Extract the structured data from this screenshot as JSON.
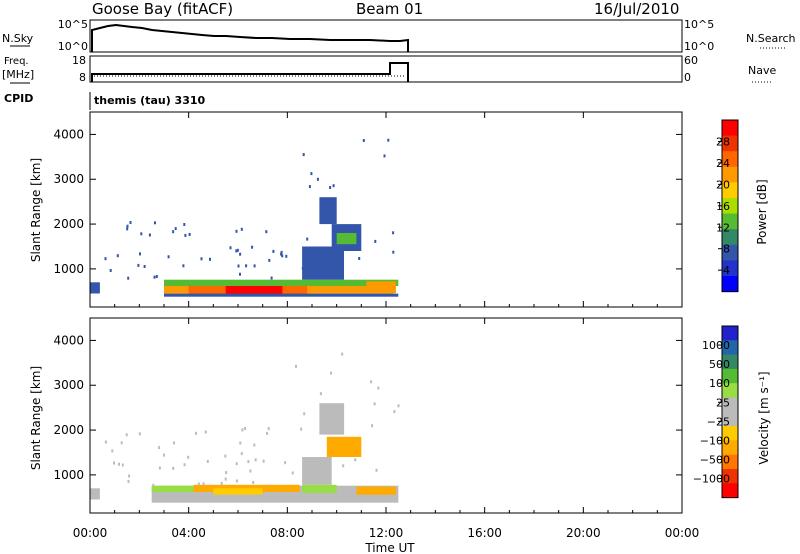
{
  "header": {
    "station": "Goose Bay (fitACF)",
    "beam": "Beam 01",
    "date": "16/Jul/2010"
  },
  "strips": {
    "nsky_label": "N.Sky",
    "nsearch_label": "N.Search",
    "freq_label_top": "Freq.",
    "freq_label_bottom": "[MHz]",
    "nave_label": "Nave",
    "cpid_label": "CPID",
    "cpid_value": "themis (tau) 3310",
    "nsky_ticks": [
      "10^5",
      "10^0"
    ],
    "nsearch_ticks": [
      "10^5",
      "10^0"
    ],
    "freq_ticks": [
      "18",
      "8"
    ],
    "nave_ticks": [
      "60",
      "0"
    ]
  },
  "chart_data": [
    {
      "type": "heatmap",
      "panel": "power",
      "ylabel": "Slant Range [km]",
      "xlabel": "",
      "ylim": [
        150,
        4500
      ],
      "xlim": [
        0,
        24
      ],
      "x_ticks": [
        "00:00",
        "04:00",
        "08:00",
        "12:00",
        "16:00",
        "20:00",
        "00:00"
      ],
      "y_ticks": [
        1000,
        2000,
        3000,
        4000
      ],
      "colorbar": {
        "label": "Power [dB]",
        "ticks": [
          "28",
          "24",
          "20",
          "16",
          "12",
          "8",
          "4"
        ],
        "colors": [
          "#ff0000",
          "#ee3300",
          "#ff6600",
          "#ff9900",
          "#ffcc00",
          "#aadd00",
          "#55bb33",
          "#338866",
          "#3355aa",
          "#2233cc",
          "#0000ff"
        ]
      },
      "regions": [
        {
          "t0": 0.0,
          "t1": 0.4,
          "r0": 450,
          "r1": 700,
          "color": "#3355aa"
        },
        {
          "t0": 3.0,
          "t1": 12.3,
          "r0": 450,
          "r1": 620,
          "color": "#ff9900"
        },
        {
          "t0": 4.0,
          "t1": 8.8,
          "r0": 440,
          "r1": 620,
          "color": "#ff6600"
        },
        {
          "t0": 5.5,
          "t1": 7.8,
          "r0": 430,
          "r1": 640,
          "color": "#ff0000"
        },
        {
          "t0": 3.0,
          "t1": 12.5,
          "r0": 620,
          "r1": 760,
          "color": "#55bb33"
        },
        {
          "t0": 3.0,
          "t1": 12.5,
          "r0": 380,
          "r1": 450,
          "color": "#3355aa"
        },
        {
          "t0": 11.2,
          "t1": 12.4,
          "r0": 460,
          "r1": 720,
          "color": "#ff9900"
        },
        {
          "t0": 8.6,
          "t1": 10.3,
          "r0": 760,
          "r1": 1500,
          "color": "#3355aa"
        },
        {
          "t0": 9.8,
          "t1": 11.0,
          "r0": 1400,
          "r1": 2000,
          "color": "#3355aa"
        },
        {
          "t0": 10.0,
          "t1": 10.8,
          "r0": 1550,
          "r1": 1800,
          "color": "#55bb33"
        },
        {
          "t0": 9.3,
          "t1": 10.0,
          "r0": 2000,
          "r1": 2600,
          "color": "#3355aa"
        }
      ]
    },
    {
      "type": "heatmap",
      "panel": "velocity",
      "ylabel": "Slant Range [km]",
      "xlabel": "Time UT",
      "ylim": [
        150,
        4500
      ],
      "xlim": [
        0,
        24
      ],
      "x_ticks": [
        "00:00",
        "04:00",
        "08:00",
        "12:00",
        "16:00",
        "20:00",
        "00:00"
      ],
      "y_ticks": [
        1000,
        2000,
        3000,
        4000
      ],
      "colorbar": {
        "label": "Velocity [m s⁻¹]",
        "ticks": [
          "1000",
          "500",
          "100",
          "25",
          "−25",
          "−100",
          "−500",
          "−1000"
        ],
        "colors": [
          "#2222cc",
          "#2266aa",
          "#338866",
          "#55bb33",
          "#99dd44",
          "#bbbbbb",
          "#bbbbbb",
          "#ffcc00",
          "#ffaa00",
          "#ff7700",
          "#ee3300",
          "#ff0000"
        ]
      },
      "regions": [
        {
          "t0": 0.0,
          "t1": 0.4,
          "r0": 450,
          "r1": 700,
          "color": "#bbbbbb"
        },
        {
          "t0": 2.5,
          "t1": 12.5,
          "r0": 380,
          "r1": 760,
          "color": "#bbbbbb"
        },
        {
          "t0": 4.2,
          "t1": 8.5,
          "r0": 620,
          "r1": 780,
          "color": "#ffaa00"
        },
        {
          "t0": 5.0,
          "t1": 7.0,
          "r0": 560,
          "r1": 700,
          "color": "#ffcc00"
        },
        {
          "t0": 2.5,
          "t1": 4.2,
          "r0": 620,
          "r1": 760,
          "color": "#99dd44"
        },
        {
          "t0": 8.6,
          "t1": 10.0,
          "r0": 600,
          "r1": 780,
          "color": "#99dd44"
        },
        {
          "t0": 10.8,
          "t1": 12.4,
          "r0": 560,
          "r1": 740,
          "color": "#ffaa00"
        },
        {
          "t0": 9.6,
          "t1": 11.0,
          "r0": 1400,
          "r1": 1850,
          "color": "#ffaa00"
        },
        {
          "t0": 8.6,
          "t1": 9.8,
          "r0": 780,
          "r1": 1400,
          "color": "#bbbbbb"
        },
        {
          "t0": 9.3,
          "t1": 10.3,
          "r0": 1900,
          "r1": 2600,
          "color": "#bbbbbb"
        }
      ]
    }
  ]
}
